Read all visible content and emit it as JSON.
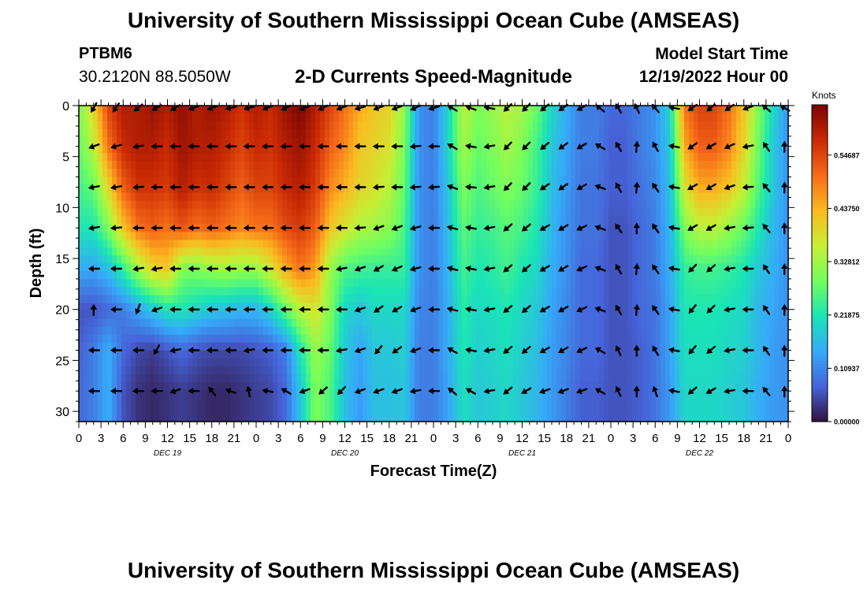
{
  "header": {
    "title": "University of Southern Mississippi Ocean Cube (AMSEAS)",
    "station": "PTBM6",
    "coords": "30.2120N  88.5050W",
    "subtitle": "2-D Currents Speed-Magnitude",
    "model_start_label": "Model Start Time",
    "model_start_value": "12/19/2022 Hour 00"
  },
  "footer": {
    "title": "University of Southern Mississippi Ocean Cube (AMSEAS)"
  },
  "chart_data": {
    "type": "heatmap",
    "title": "2-D Currents Speed-Magnitude",
    "xlabel": "Forecast Time(Z)",
    "ylabel": "Depth (ft)",
    "x_range_hours": [
      0,
      96
    ],
    "x_tick_labels": [
      "0",
      "3",
      "6",
      "9",
      "12",
      "15",
      "18",
      "21",
      "0",
      "3",
      "6",
      "9",
      "12",
      "15",
      "18",
      "21",
      "0",
      "3",
      "6",
      "9",
      "12",
      "15",
      "18",
      "21",
      "0",
      "3",
      "6",
      "9",
      "12",
      "15",
      "18",
      "21",
      "0"
    ],
    "date_labels": [
      {
        "label": "DEC 19",
        "hour": 12
      },
      {
        "label": "DEC 20",
        "hour": 36
      },
      {
        "label": "DEC 21",
        "hour": 60
      },
      {
        "label": "DEC 22",
        "hour": 84
      }
    ],
    "y_range_ft": [
      0,
      31
    ],
    "y_ticks": [
      0,
      5,
      10,
      15,
      20,
      25,
      30
    ],
    "colorbar": {
      "unit": "Knots",
      "range": [
        0,
        0.65
      ],
      "tick_values": [
        0.0,
        0.10937,
        0.21875,
        0.32812,
        0.4375,
        0.54687
      ],
      "tick_labels": [
        "0.00000",
        "0.10937",
        "0.21875",
        "0.32812",
        "0.43750",
        "0.54687"
      ],
      "colors": [
        "#30123b",
        "#4662d7",
        "#36aaf9",
        "#1ae4b6",
        "#72fe5e",
        "#c7ef34",
        "#fabb21",
        "#f66c19",
        "#ca2a04",
        "#7a0403"
      ]
    },
    "depths_ft": [
      0,
      4,
      8,
      12,
      16,
      20,
      24,
      28
    ],
    "times_hr": [
      0,
      2,
      4,
      6,
      8,
      10,
      12,
      14,
      16,
      18,
      20,
      22,
      24,
      26,
      28,
      30,
      32,
      34,
      36,
      38,
      40,
      42,
      44,
      46,
      48,
      50,
      52,
      54,
      56,
      58,
      60,
      62,
      64,
      66,
      68,
      70,
      72,
      74,
      76,
      78,
      80,
      82,
      84,
      86,
      88,
      90,
      92,
      94,
      96
    ],
    "speed_knots": [
      [
        0.3,
        0.4,
        0.55,
        0.6,
        0.6,
        0.62,
        0.6,
        0.63,
        0.6,
        0.62,
        0.6,
        0.57,
        0.6,
        0.58,
        0.62,
        0.65,
        0.6,
        0.55,
        0.5,
        0.45,
        0.42,
        0.4,
        0.32,
        0.12,
        0.1,
        0.2,
        0.35,
        0.3,
        0.32,
        0.35,
        0.33,
        0.28,
        0.2,
        0.15,
        0.1,
        0.1,
        0.08,
        0.08,
        0.1,
        0.12,
        0.2,
        0.5,
        0.55,
        0.55,
        0.5,
        0.42,
        0.3,
        0.2,
        0.12
      ],
      [
        0.28,
        0.35,
        0.5,
        0.58,
        0.6,
        0.6,
        0.58,
        0.62,
        0.6,
        0.6,
        0.58,
        0.55,
        0.58,
        0.57,
        0.6,
        0.62,
        0.58,
        0.52,
        0.48,
        0.42,
        0.4,
        0.38,
        0.3,
        0.12,
        0.1,
        0.2,
        0.33,
        0.28,
        0.3,
        0.33,
        0.3,
        0.25,
        0.18,
        0.14,
        0.1,
        0.1,
        0.07,
        0.07,
        0.1,
        0.12,
        0.18,
        0.45,
        0.52,
        0.52,
        0.48,
        0.4,
        0.28,
        0.18,
        0.12
      ],
      [
        0.25,
        0.28,
        0.4,
        0.52,
        0.57,
        0.57,
        0.56,
        0.6,
        0.57,
        0.58,
        0.55,
        0.52,
        0.55,
        0.55,
        0.58,
        0.6,
        0.56,
        0.48,
        0.44,
        0.4,
        0.38,
        0.35,
        0.28,
        0.12,
        0.1,
        0.18,
        0.3,
        0.26,
        0.28,
        0.3,
        0.28,
        0.24,
        0.17,
        0.13,
        0.09,
        0.09,
        0.07,
        0.07,
        0.09,
        0.11,
        0.17,
        0.38,
        0.45,
        0.45,
        0.42,
        0.36,
        0.26,
        0.18,
        0.12
      ],
      [
        0.22,
        0.22,
        0.3,
        0.42,
        0.5,
        0.52,
        0.5,
        0.53,
        0.5,
        0.52,
        0.5,
        0.48,
        0.5,
        0.5,
        0.54,
        0.56,
        0.52,
        0.42,
        0.38,
        0.34,
        0.33,
        0.31,
        0.26,
        0.12,
        0.1,
        0.17,
        0.27,
        0.24,
        0.25,
        0.27,
        0.25,
        0.22,
        0.16,
        0.12,
        0.09,
        0.09,
        0.06,
        0.06,
        0.08,
        0.1,
        0.16,
        0.3,
        0.35,
        0.35,
        0.32,
        0.28,
        0.22,
        0.16,
        0.12
      ],
      [
        0.15,
        0.14,
        0.17,
        0.24,
        0.33,
        0.4,
        0.42,
        0.3,
        0.3,
        0.32,
        0.33,
        0.32,
        0.32,
        0.38,
        0.45,
        0.5,
        0.46,
        0.32,
        0.26,
        0.25,
        0.24,
        0.24,
        0.24,
        0.12,
        0.1,
        0.16,
        0.25,
        0.22,
        0.23,
        0.25,
        0.22,
        0.2,
        0.15,
        0.12,
        0.08,
        0.08,
        0.06,
        0.06,
        0.08,
        0.1,
        0.15,
        0.24,
        0.25,
        0.25,
        0.24,
        0.22,
        0.18,
        0.15,
        0.12
      ],
      [
        0.06,
        0.06,
        0.08,
        0.1,
        0.14,
        0.18,
        0.22,
        0.22,
        0.2,
        0.18,
        0.17,
        0.16,
        0.16,
        0.2,
        0.28,
        0.35,
        0.38,
        0.3,
        0.2,
        0.18,
        0.2,
        0.2,
        0.2,
        0.11,
        0.1,
        0.15,
        0.23,
        0.2,
        0.21,
        0.22,
        0.2,
        0.18,
        0.14,
        0.11,
        0.08,
        0.08,
        0.06,
        0.06,
        0.08,
        0.09,
        0.14,
        0.22,
        0.22,
        0.22,
        0.21,
        0.2,
        0.16,
        0.14,
        0.12
      ],
      [
        0.07,
        0.1,
        0.15,
        0.08,
        0.05,
        0.04,
        0.06,
        0.08,
        0.06,
        0.05,
        0.05,
        0.05,
        0.06,
        0.07,
        0.1,
        0.22,
        0.32,
        0.28,
        0.18,
        0.14,
        0.18,
        0.18,
        0.19,
        0.1,
        0.1,
        0.15,
        0.22,
        0.19,
        0.2,
        0.21,
        0.19,
        0.17,
        0.13,
        0.11,
        0.08,
        0.08,
        0.06,
        0.06,
        0.07,
        0.09,
        0.14,
        0.21,
        0.21,
        0.21,
        0.2,
        0.19,
        0.16,
        0.13,
        0.12
      ],
      [
        0.08,
        0.1,
        0.15,
        0.06,
        0.03,
        0.02,
        0.03,
        0.04,
        0.03,
        0.02,
        0.02,
        0.03,
        0.04,
        0.05,
        0.08,
        0.18,
        0.3,
        0.26,
        0.17,
        0.13,
        0.17,
        0.17,
        0.18,
        0.1,
        0.1,
        0.14,
        0.21,
        0.18,
        0.19,
        0.2,
        0.18,
        0.16,
        0.13,
        0.1,
        0.07,
        0.07,
        0.06,
        0.06,
        0.07,
        0.09,
        0.13,
        0.2,
        0.2,
        0.2,
        0.19,
        0.18,
        0.15,
        0.13,
        0.12
      ]
    ],
    "arrow_times_hr": [
      2,
      5,
      8,
      10.5,
      13,
      15.5,
      18,
      20.5,
      23,
      25.5,
      28,
      30.5,
      33,
      35.5,
      38,
      40.5,
      43,
      45.5,
      48,
      50.5,
      53,
      55.5,
      58,
      60.5,
      63,
      65.5,
      68,
      70.5,
      73,
      75.5,
      78,
      80.5,
      83,
      85.5,
      88,
      90.5,
      93,
      95.5
    ],
    "arrow_direction_deg": [
      [
        240,
        235,
        220,
        210,
        210,
        200,
        200,
        190,
        195,
        200,
        205,
        200,
        205,
        200,
        195,
        200,
        200,
        205,
        195,
        150,
        160,
        170,
        225,
        225,
        220,
        215,
        210,
        140,
        120,
        115,
        130,
        170,
        215,
        220,
        215,
        200,
        140,
        150
      ],
      [
        200,
        195,
        190,
        180,
        180,
        180,
        180,
        180,
        180,
        180,
        180,
        180,
        180,
        180,
        180,
        180,
        180,
        185,
        180,
        150,
        170,
        190,
        225,
        225,
        220,
        215,
        210,
        150,
        120,
        85,
        120,
        170,
        215,
        210,
        205,
        190,
        125,
        90
      ],
      [
        190,
        190,
        185,
        180,
        180,
        180,
        180,
        180,
        180,
        180,
        180,
        180,
        180,
        180,
        180,
        185,
        180,
        185,
        185,
        160,
        175,
        190,
        225,
        225,
        215,
        215,
        210,
        160,
        120,
        85,
        125,
        170,
        210,
        210,
        200,
        185,
        130,
        90
      ],
      [
        190,
        185,
        180,
        180,
        180,
        180,
        180,
        180,
        180,
        180,
        180,
        180,
        180,
        180,
        185,
        200,
        200,
        195,
        180,
        165,
        170,
        190,
        220,
        220,
        210,
        210,
        205,
        160,
        125,
        90,
        125,
        170,
        210,
        210,
        190,
        185,
        130,
        90
      ],
      [
        180,
        180,
        190,
        190,
        180,
        180,
        180,
        180,
        180,
        180,
        180,
        180,
        180,
        190,
        200,
        210,
        205,
        195,
        180,
        165,
        170,
        190,
        220,
        220,
        210,
        210,
        205,
        160,
        120,
        85,
        125,
        170,
        225,
        220,
        190,
        180,
        125,
        90
      ],
      [
        90,
        180,
        250,
        200,
        180,
        180,
        180,
        180,
        180,
        180,
        180,
        180,
        180,
        180,
        200,
        215,
        210,
        200,
        180,
        165,
        170,
        190,
        220,
        220,
        210,
        210,
        205,
        160,
        120,
        85,
        125,
        170,
        230,
        225,
        190,
        180,
        125,
        90
      ],
      [
        180,
        180,
        180,
        240,
        190,
        180,
        180,
        180,
        190,
        180,
        180,
        180,
        180,
        190,
        200,
        230,
        215,
        200,
        180,
        150,
        170,
        190,
        220,
        220,
        210,
        210,
        205,
        150,
        115,
        90,
        120,
        170,
        230,
        220,
        190,
        180,
        125,
        90
      ],
      [
        180,
        180,
        180,
        180,
        200,
        180,
        130,
        160,
        100,
        170,
        150,
        200,
        220,
        225,
        200,
        200,
        200,
        190,
        180,
        140,
        150,
        190,
        220,
        210,
        200,
        200,
        200,
        150,
        115,
        90,
        110,
        170,
        220,
        210,
        190,
        180,
        130,
        90
      ]
    ],
    "arrow_depths_ft": [
      0,
      4,
      8,
      12,
      16,
      20,
      24,
      28
    ]
  }
}
